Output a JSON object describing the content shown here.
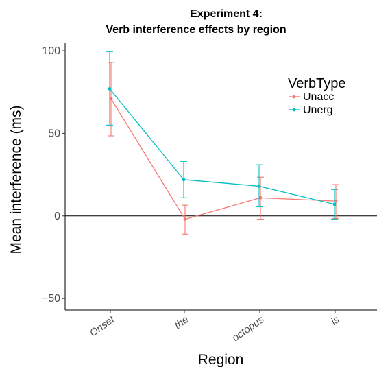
{
  "chart_data": {
    "type": "line",
    "title": "Experiment  4:",
    "subtitle": "Verb interference effects by region",
    "xlabel": "Region",
    "ylabel": "Mean interference (ms)",
    "categories": [
      "Onset",
      "the",
      "octopus",
      "is"
    ],
    "ylim": [
      -57,
      105
    ],
    "yticks": [
      -50,
      0,
      50,
      100
    ],
    "reference_line_y": 0,
    "grid": false,
    "legend": {
      "title": "VerbType",
      "position": "top-right"
    },
    "series": [
      {
        "name": "Unacc",
        "color": "#F8766D",
        "values": [
          71,
          -2,
          11,
          9
        ],
        "error_low": [
          48.5,
          -11,
          -2,
          -1.5
        ],
        "error_high": [
          93,
          6.5,
          23.5,
          19
        ]
      },
      {
        "name": "Unerg",
        "color": "#00BFC4",
        "values": [
          77,
          22,
          18,
          7
        ],
        "error_low": [
          55,
          11,
          5.5,
          -2
        ],
        "error_high": [
          99.5,
          33,
          31,
          16
        ]
      }
    ]
  }
}
